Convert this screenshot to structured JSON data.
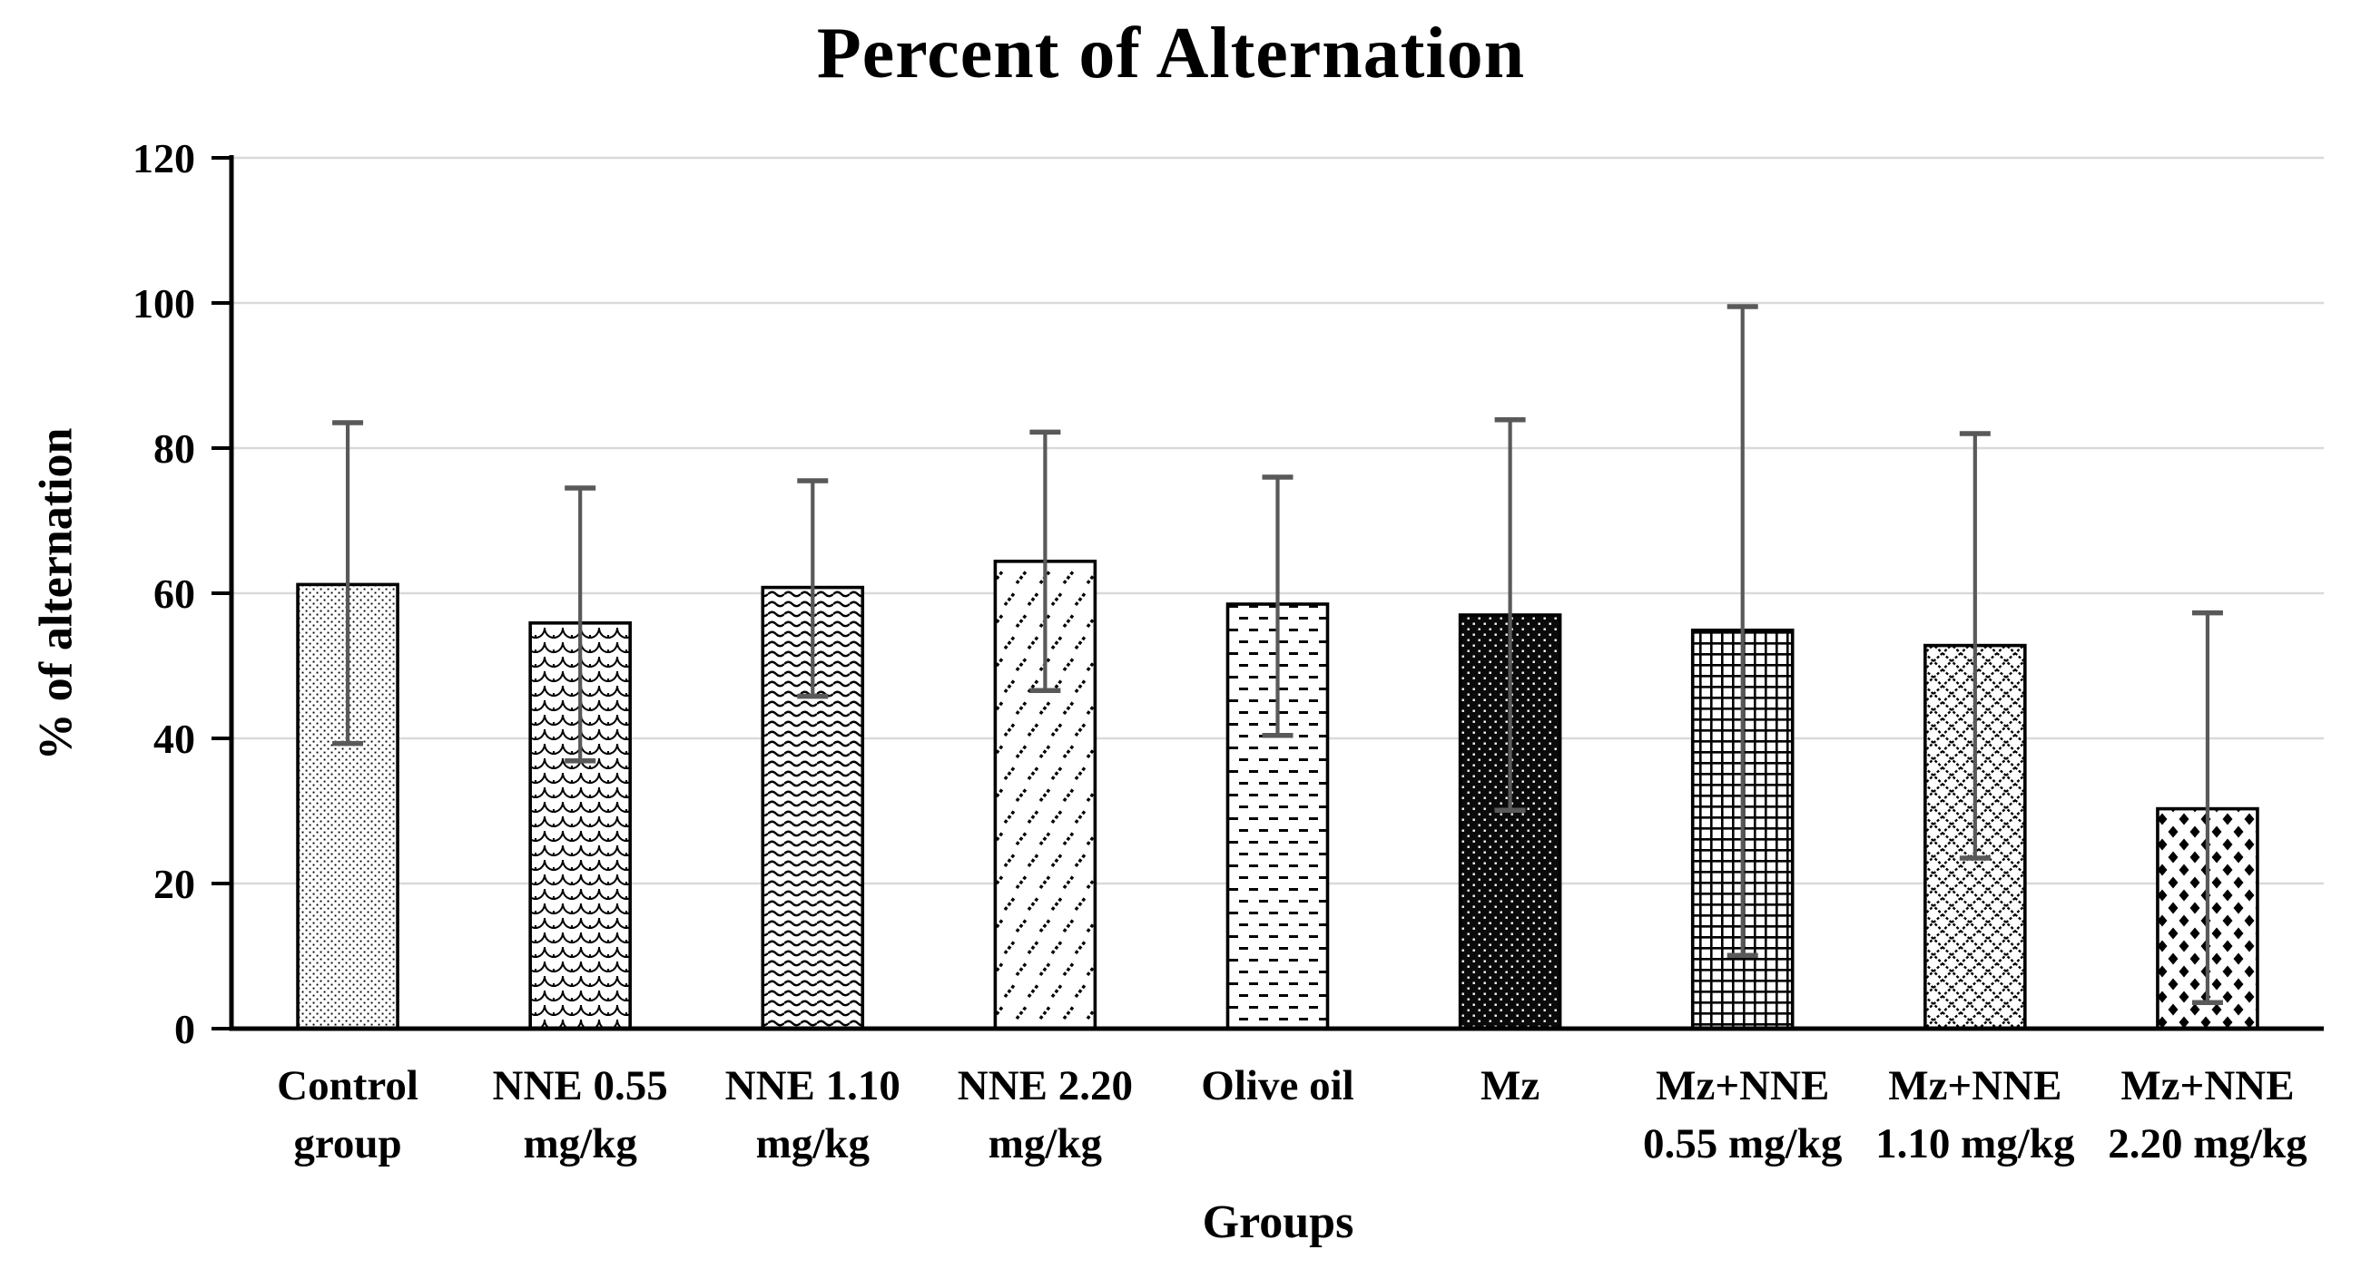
{
  "chart_data": {
    "type": "bar",
    "title": "Percent of Alternation",
    "xlabel": "Groups",
    "ylabel": "% of alternation",
    "ylim": [
      0,
      120
    ],
    "yticks": [
      0,
      20,
      40,
      60,
      80,
      100,
      120
    ],
    "grid": true,
    "legend": "none",
    "categories": [
      "Control group",
      "NNE 0.55 mg/kg",
      "NNE 1.10 mg/kg",
      "NNE 2.20 mg/kg",
      "Olive oil",
      "Mz",
      "Mz+NNE 0.55 mg/kg",
      "Mz+NNE 1.10 mg/kg",
      "Mz+NNE 2.20 mg/kg"
    ],
    "category_label_lines": [
      [
        "Control",
        "group"
      ],
      [
        "NNE 0.55",
        "mg/kg"
      ],
      [
        "NNE 1.10",
        "mg/kg"
      ],
      [
        "NNE 2.20",
        "mg/kg"
      ],
      [
        "Olive oil"
      ],
      [
        "Mz"
      ],
      [
        "Mz+NNE",
        "0.55 mg/kg"
      ],
      [
        "Mz+NNE",
        "1.10 mg/kg"
      ],
      [
        "Mz+NNE",
        "2.20 mg/kg"
      ]
    ],
    "values": [
      61.2,
      55.9,
      60.8,
      64.4,
      58.5,
      57.0,
      54.9,
      52.8,
      30.3
    ],
    "error_upper": [
      83.5,
      74.5,
      75.5,
      82.2,
      76.0,
      83.9,
      99.5,
      82.0,
      57.3
    ],
    "error_lower": [
      39.3,
      36.9,
      45.8,
      46.6,
      40.4,
      30.1,
      10.1,
      23.5,
      3.6
    ],
    "bar_patterns": [
      "fine-dots",
      "shingle-scales",
      "horizontal-waves",
      "diagonal-dashes",
      "horizontal-dashes",
      "black-with-white-dots",
      "bold-grid",
      "dotted-diamond-lattice",
      "black-diamonds"
    ],
    "colors": {
      "bar_outline": "#000000",
      "error_bar": "#595959",
      "gridline": "#d9d9d9",
      "axis": "#000000",
      "background": "#ffffff",
      "text": "#000000"
    }
  }
}
